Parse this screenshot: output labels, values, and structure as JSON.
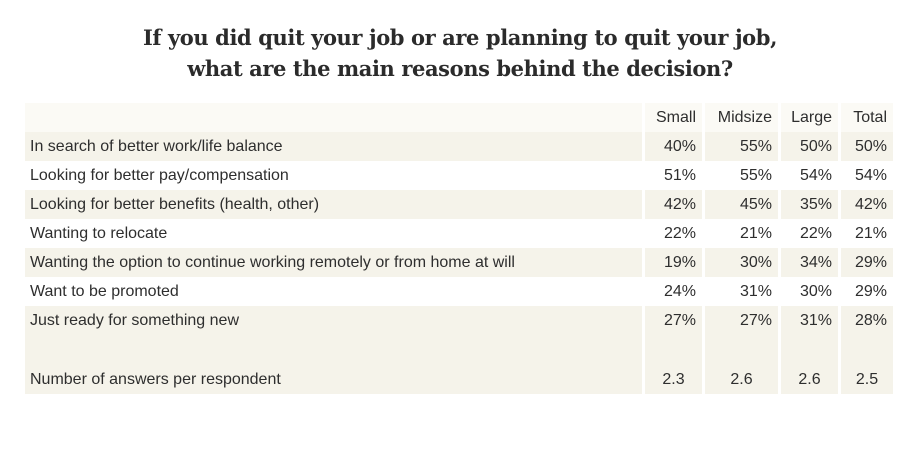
{
  "title": {
    "line1": "If you did quit your job or are planning to quit your job,",
    "line2": "what are the main reasons behind the decision?"
  },
  "chart_data": {
    "type": "table",
    "columns": [
      "Small",
      "Midsize",
      "Large",
      "Total"
    ],
    "rows": [
      {
        "label": "In search of better work/life balance",
        "values": [
          "40%",
          "55%",
          "50%",
          "50%"
        ]
      },
      {
        "label": "Looking for better pay/compensation",
        "values": [
          "51%",
          "55%",
          "54%",
          "54%"
        ]
      },
      {
        "label": "Looking for better benefits (health, other)",
        "values": [
          "42%",
          "45%",
          "35%",
          "42%"
        ]
      },
      {
        "label": "Wanting to relocate",
        "values": [
          "22%",
          "21%",
          "22%",
          "21%"
        ]
      },
      {
        "label": "Wanting the option to continue working remotely or from home at will",
        "values": [
          "19%",
          "30%",
          "34%",
          "29%"
        ]
      },
      {
        "label": "Want to be promoted",
        "values": [
          "24%",
          "31%",
          "30%",
          "29%"
        ]
      },
      {
        "label": "Just ready for something new",
        "values": [
          "27%",
          "27%",
          "31%",
          "28%"
        ]
      }
    ],
    "summary": {
      "label": "Number of answers per respondent",
      "values": [
        "2.3",
        "2.6",
        "2.6",
        "2.5"
      ]
    }
  }
}
